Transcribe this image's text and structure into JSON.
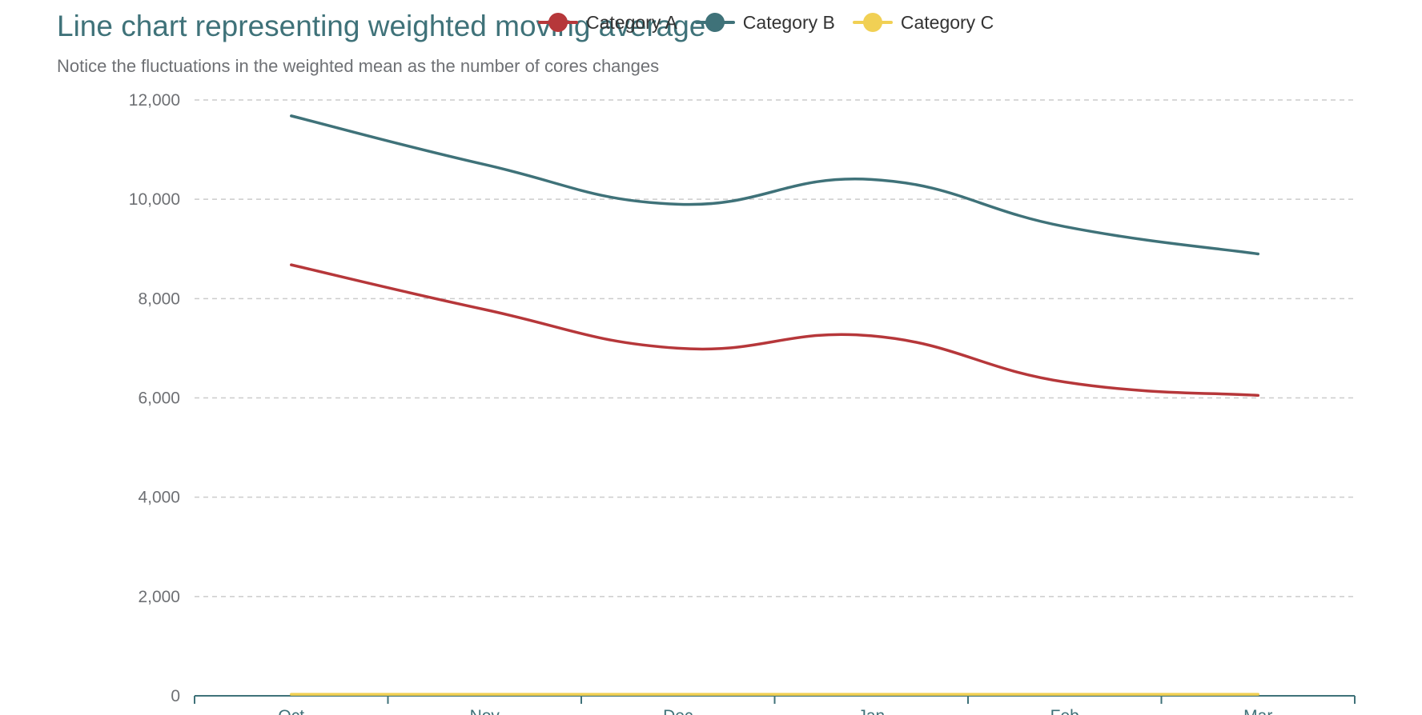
{
  "chart_data": {
    "type": "line",
    "title": "Line chart representing weighted moving average",
    "subtitle": "Notice the fluctuations in the weighted mean as the number of cores changes",
    "categories": [
      "Oct",
      "Nov",
      "Dec",
      "Jan",
      "Feb",
      "Mar"
    ],
    "series": [
      {
        "name": "Category A",
        "color": "#b6373a",
        "values": [
          8680,
          7780,
          7000,
          7250,
          6320,
          6050
        ]
      },
      {
        "name": "Category B",
        "color": "#3f7279",
        "values": [
          11680,
          10700,
          9900,
          10400,
          9450,
          8900
        ]
      },
      {
        "name": "Category C",
        "color": "#f1d054",
        "values": [
          30,
          30,
          30,
          30,
          30,
          30
        ]
      }
    ],
    "yticks": [
      "0",
      "2,000",
      "4,000",
      "6,000",
      "8,000",
      "10,000",
      "12,000"
    ],
    "ylim": [
      0,
      12000
    ],
    "xlabel": "",
    "ylabel": "",
    "grid": true,
    "smooth": true,
    "legend_position": "top-center"
  }
}
